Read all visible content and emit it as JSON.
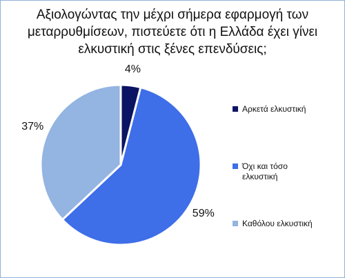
{
  "chart_data": {
    "type": "pie",
    "title": "Αξιολογώντας την μέχρι σήμερα εφαρμογή των μεταρρυθμίσεων, πιστεύετε ότι η Ελλάδα έχει γίνει ελκυστική στις ξένες επενδύσεις;",
    "categories": [
      "Αρκετά ελκυστική",
      "Όχι και τόσο ελκυστική",
      "Καθόλου ελκυστική"
    ],
    "values": [
      4,
      59,
      37
    ],
    "value_labels": [
      "4%",
      "59%",
      "37%"
    ],
    "colors": [
      "#0b1463",
      "#3e6ee8",
      "#94b4e2"
    ],
    "legend": "right"
  }
}
